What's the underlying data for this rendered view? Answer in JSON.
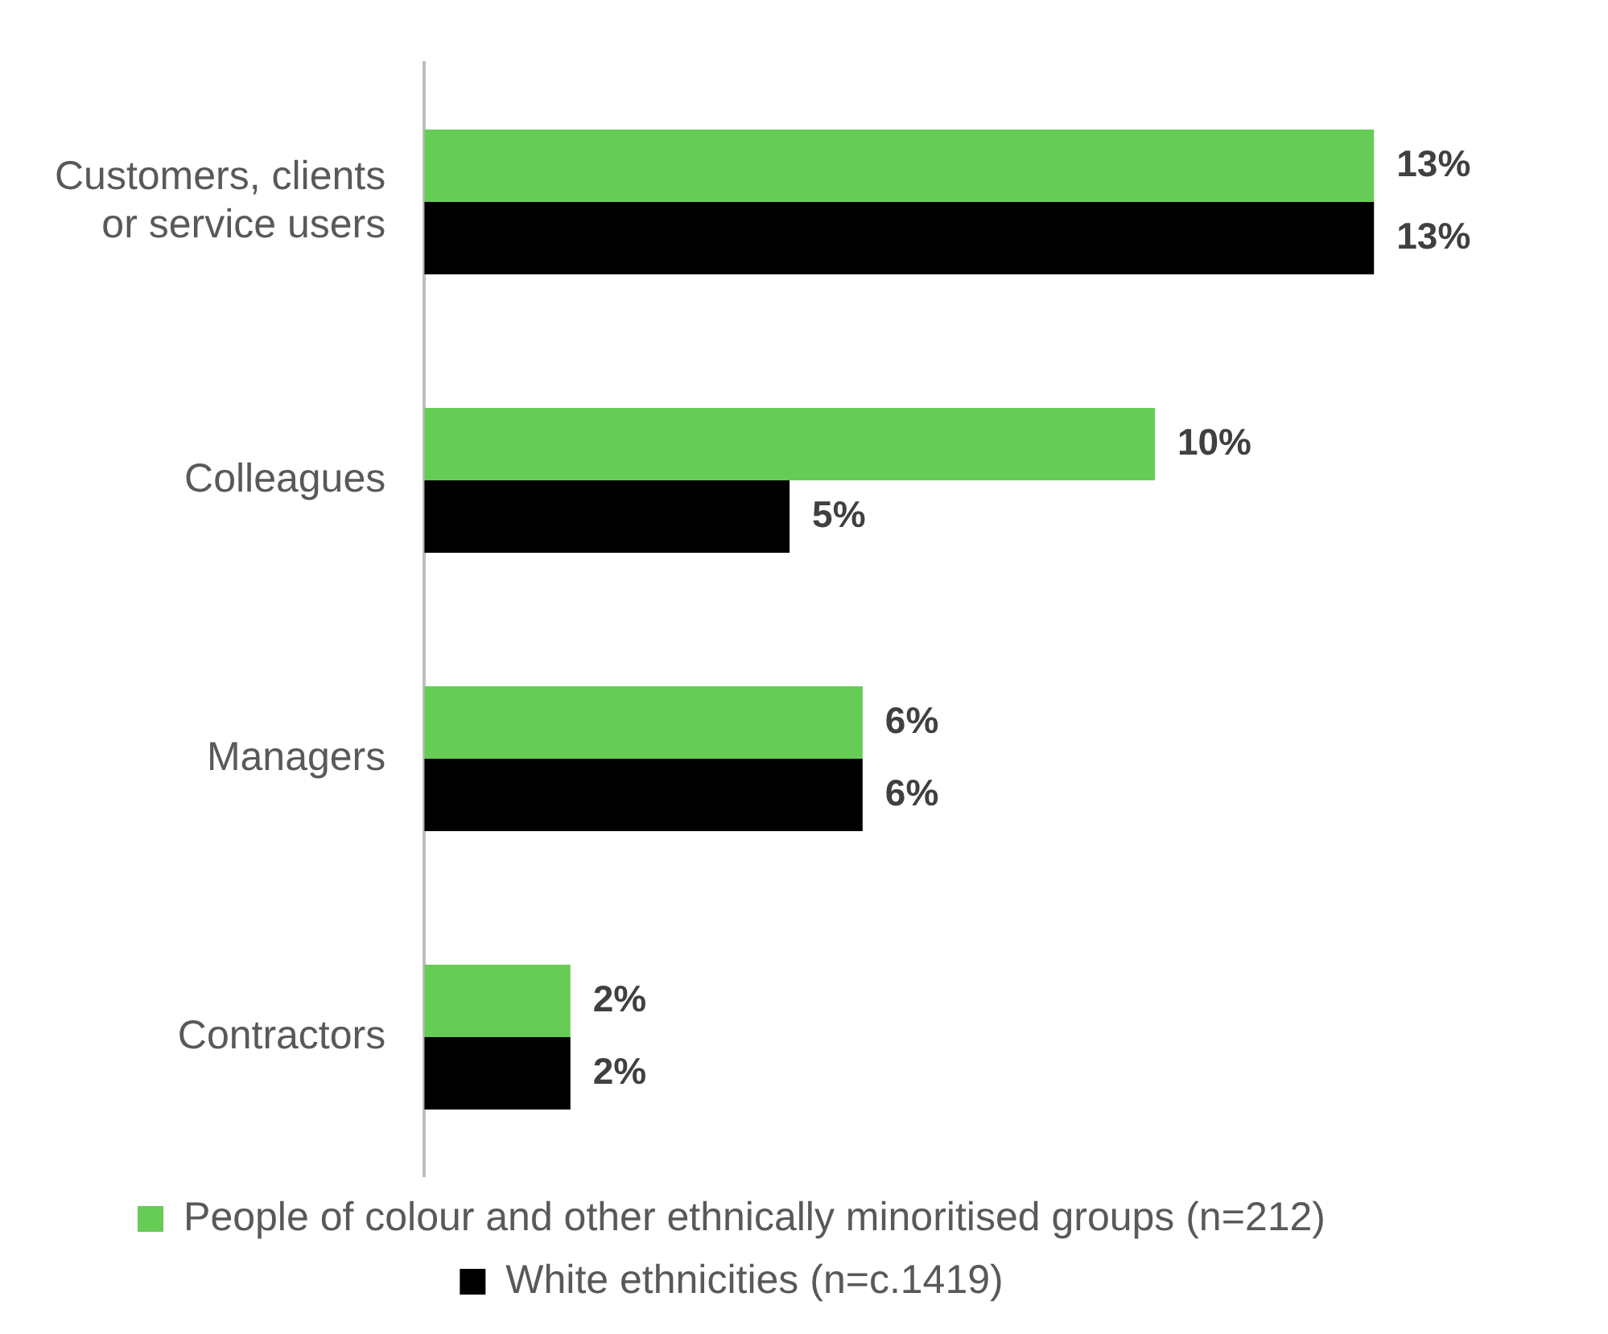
{
  "chart_data": {
    "type": "bar",
    "orientation": "horizontal",
    "categories": [
      "Customers, clients or service users",
      "Colleagues",
      "Managers",
      "Contractors"
    ],
    "series": [
      {
        "name": "People of colour and other ethnically minoritised groups (n=212)",
        "color": "#66cc55",
        "values": [
          13,
          10,
          6,
          2
        ],
        "value_labels": [
          "13%",
          "10%",
          "6%",
          "2%"
        ]
      },
      {
        "name": "White ethnicities (n=c.1419)",
        "color": "#000000",
        "values": [
          13,
          5,
          6,
          2
        ],
        "value_labels": [
          "13%",
          "5%",
          "6%",
          "2%"
        ]
      }
    ],
    "legend": "bottom",
    "tick_labels": "y"
  }
}
